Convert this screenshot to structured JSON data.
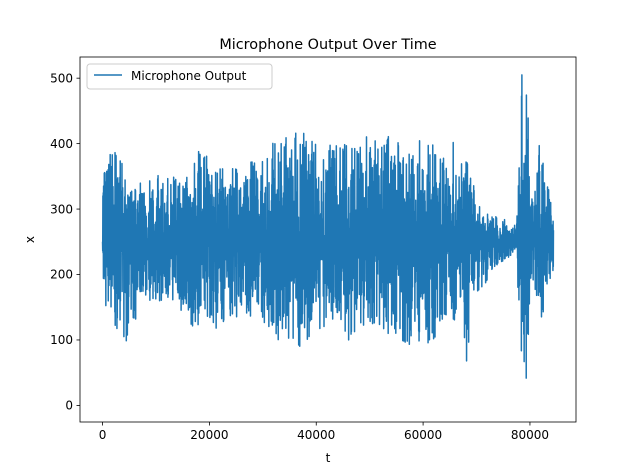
{
  "chart_data": {
    "type": "line",
    "title": "Microphone Output Over Time",
    "xlabel": "t",
    "ylabel": "x",
    "xlim": [
      -4220,
      88620
    ],
    "ylim": [
      -25.35,
      532.35
    ],
    "xticks": [
      0,
      20000,
      40000,
      60000,
      80000
    ],
    "yticks": [
      0,
      100,
      200,
      300,
      400,
      500
    ],
    "xtick_labels": [
      "0",
      "20000",
      "40000",
      "60000",
      "80000"
    ],
    "ytick_labels": [
      "0",
      "100",
      "200",
      "300",
      "400",
      "500"
    ],
    "legend": {
      "position": "top-left",
      "entries": [
        "Microphone Output"
      ]
    },
    "grid": false,
    "series": [
      {
        "name": "Microphone Output",
        "color": "#1f77b4",
        "x_start": 0,
        "x_end": 84400,
        "baseline": 250,
        "envelope": [
          {
            "t": 0,
            "low": 150,
            "high": 365
          },
          {
            "t": 1500,
            "low": 130,
            "high": 385
          },
          {
            "t": 2000,
            "low": 125,
            "high": 428
          },
          {
            "t": 4800,
            "low": 95,
            "high": 330
          },
          {
            "t": 8000,
            "low": 160,
            "high": 345
          },
          {
            "t": 12000,
            "low": 160,
            "high": 360
          },
          {
            "t": 15000,
            "low": 140,
            "high": 345
          },
          {
            "t": 18000,
            "low": 110,
            "high": 390
          },
          {
            "t": 22000,
            "low": 120,
            "high": 365
          },
          {
            "t": 26000,
            "low": 140,
            "high": 365
          },
          {
            "t": 30000,
            "low": 130,
            "high": 385
          },
          {
            "t": 32000,
            "low": 90,
            "high": 405
          },
          {
            "t": 35000,
            "low": 100,
            "high": 410
          },
          {
            "t": 37000,
            "low": 90,
            "high": 420
          },
          {
            "t": 40000,
            "low": 115,
            "high": 400
          },
          {
            "t": 44000,
            "low": 130,
            "high": 405
          },
          {
            "t": 46000,
            "low": 100,
            "high": 395
          },
          {
            "t": 50000,
            "low": 110,
            "high": 415
          },
          {
            "t": 54000,
            "low": 110,
            "high": 410
          },
          {
            "t": 57000,
            "low": 95,
            "high": 390
          },
          {
            "t": 59000,
            "low": 88,
            "high": 410
          },
          {
            "t": 62000,
            "low": 100,
            "high": 415
          },
          {
            "t": 64000,
            "low": 140,
            "high": 375
          },
          {
            "t": 66000,
            "low": 130,
            "high": 420
          },
          {
            "t": 67500,
            "low": 150,
            "high": 380
          },
          {
            "t": 68000,
            "low": 0,
            "high": 400
          },
          {
            "t": 69000,
            "low": 175,
            "high": 345
          },
          {
            "t": 71000,
            "low": 175,
            "high": 305
          },
          {
            "t": 73000,
            "low": 210,
            "high": 290
          },
          {
            "t": 76000,
            "low": 225,
            "high": 285
          },
          {
            "t": 77500,
            "low": 230,
            "high": 275
          },
          {
            "t": 78200,
            "low": 0,
            "high": 507
          },
          {
            "t": 79500,
            "low": 0,
            "high": 507
          },
          {
            "t": 80000,
            "low": 200,
            "high": 300
          },
          {
            "t": 82000,
            "low": 125,
            "high": 415
          },
          {
            "t": 84400,
            "low": 205,
            "high": 290
          }
        ]
      }
    ]
  }
}
